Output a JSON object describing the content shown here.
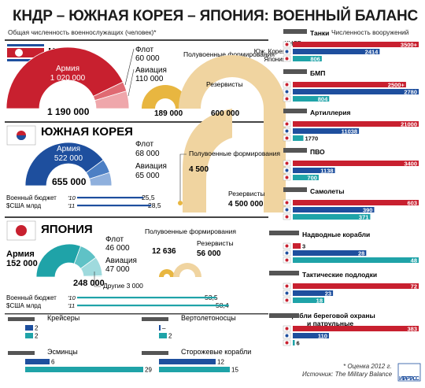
{
  "title": "КНДР – ЮЖНАЯ КОРЕЯ – ЯПОНИЯ: ВОЕННЫЙ БАЛАНС",
  "personnel_caption": "Общая численность военнослужащих (человек)*",
  "equipment_caption": "Численность вооружений",
  "countries": {
    "dprk": "КНДР",
    "rok": "ЮЖНАЯ КОРЕЯ",
    "japan": "ЯПОНИЯ"
  },
  "legend_labels": [
    "КНДР",
    "Юж. Корея",
    "Япония"
  ],
  "colors": {
    "dprk": "#c8202f",
    "rok": "#1e4f9e",
    "japan": "#1fa3a8",
    "reserve": "#f0d4a0",
    "paramil": "#e8b640"
  },
  "personnel": {
    "dprk": {
      "army_label": "Армия",
      "army": "1 020 000",
      "navy_label": "Флот",
      "navy": "60 000",
      "air_label": "Авиация",
      "air": "110 000",
      "total": "1 190 000",
      "paramil_label": "Полувоенные формирования",
      "paramil": "189 000",
      "reserve_label": "Резервисты",
      "reserve": "600 000"
    },
    "rok": {
      "army_label": "Армия",
      "army": "522 000",
      "navy_label": "Флот",
      "navy": "68 000",
      "air_label": "Авиация",
      "air": "65 000",
      "total": "655 000",
      "paramil_label": "Полувоенные формирования",
      "paramil": "4 500",
      "reserve_label": "Резервисты",
      "reserve": "4 500 000",
      "budget_label1": "Военный бюджет",
      "budget_label2": "$США млрд",
      "y10": "'10",
      "y11": "'11",
      "b10": "25,5",
      "b11": "28,5"
    },
    "japan": {
      "army_label": "Армия",
      "army": "152 000",
      "navy_label": "Флот",
      "navy": "46 000",
      "air_label": "Авиация",
      "air": "47 000",
      "other": "Другие 3 000",
      "total": "248 000",
      "paramil_label": "Полувоенные формирования",
      "paramil": "12 636",
      "reserve_label": "Резервисты",
      "reserve": "56 000",
      "budget_label1": "Военный бюджет",
      "budget_label2": "$США млрд",
      "y10": "'10",
      "y11": "'11",
      "b10": "53,5",
      "b11": "58,4"
    }
  },
  "chart_data": [
    {
      "type": "pie",
      "title": "КНДР",
      "subtitle": "Общая численность военнослужащих (человек)*",
      "categories": [
        "Армия",
        "Флот",
        "Авиация"
      ],
      "values": [
        1020000,
        60000,
        110000
      ],
      "total": 1190000
    },
    {
      "type": "pie",
      "title": "ЮЖНАЯ КОРЕЯ",
      "categories": [
        "Армия",
        "Флот",
        "Авиация"
      ],
      "values": [
        522000,
        68000,
        65000
      ],
      "total": 655000
    },
    {
      "type": "pie",
      "title": "ЯПОНИЯ",
      "categories": [
        "Армия",
        "Флот",
        "Авиация",
        "Другие"
      ],
      "values": [
        152000,
        46000,
        47000,
        3000
      ],
      "total": 248000
    },
    {
      "type": "bar",
      "title": "Численность вооружений",
      "series_names": [
        "КНДР",
        "Юж. Корея",
        "Япония"
      ],
      "groups": [
        {
          "name": "Танки",
          "values": [
            3500,
            2414,
            806
          ],
          "labels": [
            "3500+",
            "2414",
            "806"
          ]
        },
        {
          "name": "БМП",
          "values": [
            2500,
            2780,
            804
          ],
          "labels": [
            "2500+",
            "2780",
            "804"
          ]
        },
        {
          "name": "Артиллерия",
          "values": [
            21000,
            11038,
            1770
          ],
          "labels": [
            "21000",
            "11038",
            "1770"
          ]
        },
        {
          "name": "ПВО",
          "values": [
            3400,
            1138,
            700
          ],
          "labels": [
            "3400",
            "1138",
            "700"
          ]
        },
        {
          "name": "Самолеты",
          "values": [
            603,
            390,
            371
          ],
          "labels": [
            "603",
            "390",
            "371"
          ]
        },
        {
          "name": "Надводные корабли",
          "values": [
            3,
            28,
            48
          ],
          "labels": [
            "3",
            "28",
            "48"
          ]
        },
        {
          "name": "Тактические подлодки",
          "values": [
            72,
            23,
            18
          ],
          "labels": [
            "72",
            "23",
            "18"
          ]
        },
        {
          "name": "Корабли береговой охраны и патрульные",
          "values": [
            383,
            110,
            6
          ],
          "labels": [
            "383",
            "110",
            "6"
          ]
        }
      ]
    },
    {
      "type": "bar",
      "groups": [
        {
          "name": "Крейсеры",
          "values": [
            2,
            2
          ],
          "labels": [
            "2",
            "2"
          ]
        },
        {
          "name": "Вертолетоносцы",
          "values": [
            0,
            2
          ],
          "labels": [
            "–",
            "2"
          ]
        },
        {
          "name": "Эсминцы",
          "values": [
            6,
            29
          ],
          "labels": [
            "6",
            "29"
          ]
        },
        {
          "name": "Сторожевые корабли",
          "values": [
            12,
            15
          ],
          "labels": [
            "12",
            "15"
          ]
        }
      ]
    },
    {
      "type": "bar",
      "title": "Военный бюджет $США млрд",
      "series": [
        {
          "name": "Южная Корея",
          "x": [
            "'10",
            "'11"
          ],
          "values": [
            25.5,
            28.5
          ]
        },
        {
          "name": "Япония",
          "x": [
            "'10",
            "'11"
          ],
          "values": [
            53.5,
            58.4
          ]
        }
      ]
    }
  ],
  "footnote": "* Оценка 2012 г.",
  "source": "Источник: The Military Balance",
  "logo": "ИТАР ТАСС"
}
